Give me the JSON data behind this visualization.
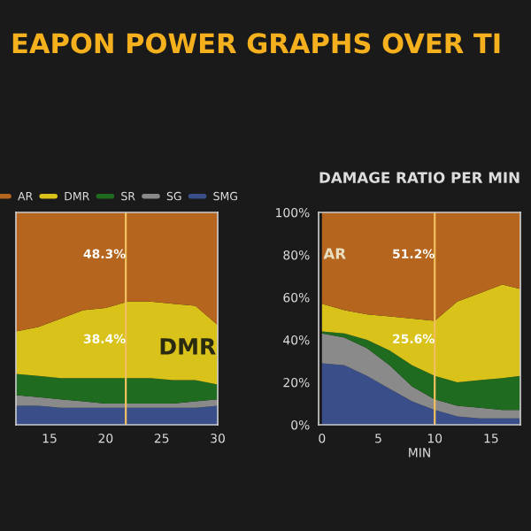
{
  "chart_data": [
    {
      "type": "area",
      "title": "EAPON POWER GRAPHS OVER TI",
      "stacked": true,
      "legend": "top",
      "tick_labels": "x",
      "grid": false,
      "x": [
        12,
        14,
        16,
        18,
        20,
        22,
        24,
        26,
        28,
        30
      ],
      "xlim": [
        12,
        30
      ],
      "xticks": [
        15,
        20,
        25,
        30
      ],
      "ylim": [
        0,
        100
      ],
      "series": [
        {
          "name": "SMG",
          "color": "#3a4f8a",
          "values": [
            9,
            9,
            8,
            8,
            8,
            8,
            8,
            8,
            8,
            9
          ]
        },
        {
          "name": "SG",
          "color": "#8a8a8a",
          "values": [
            5,
            4,
            4,
            3,
            2,
            2,
            2,
            2,
            3,
            3
          ]
        },
        {
          "name": "SR",
          "color": "#1f6b1f",
          "values": [
            10,
            10,
            10,
            11,
            12,
            12,
            12,
            11,
            10,
            7
          ]
        },
        {
          "name": "DMR",
          "color": "#d9c21a",
          "values": [
            20,
            23,
            28,
            32,
            33,
            36,
            36,
            36,
            35,
            28
          ]
        },
        {
          "name": "AR",
          "color": "#b5651d",
          "values": [
            56,
            54,
            50,
            46,
            45,
            42,
            42,
            43,
            44,
            53
          ]
        }
      ],
      "ref_lines": [
        {
          "axis": "x",
          "value": 21.8,
          "color": "#f0c060"
        }
      ],
      "annotations": [
        "48.3%",
        "38.4%",
        "DMR"
      ]
    },
    {
      "type": "area",
      "title": "DAMAGE RATIO PER MIN",
      "stacked": true,
      "xlabel": "MIN",
      "grid": false,
      "x": [
        0,
        2,
        4,
        6,
        8,
        10,
        12,
        14,
        16,
        17.6
      ],
      "xlim": [
        -0.3,
        17.6
      ],
      "xticks": [
        0,
        5,
        10,
        15
      ],
      "ylim": [
        0,
        100
      ],
      "yticks": [
        {
          "value": 0,
          "label": "0%"
        },
        {
          "value": 20,
          "label": "20%"
        },
        {
          "value": 40,
          "label": "40%"
        },
        {
          "value": 60,
          "label": "60%"
        },
        {
          "value": 80,
          "label": "80%"
        },
        {
          "value": 100,
          "label": "100%"
        }
      ],
      "series": [
        {
          "color": "#3a4f8a",
          "values": [
            29,
            28,
            23,
            17,
            11,
            7,
            4,
            3,
            3,
            3
          ]
        },
        {
          "color": "#8a8a8a",
          "values": [
            14,
            13,
            13,
            11,
            7,
            5,
            5,
            5,
            4,
            4
          ]
        },
        {
          "color": "#1f6b1f",
          "values": [
            1,
            2,
            4,
            7,
            10,
            11,
            11,
            13,
            15,
            16
          ]
        },
        {
          "color": "#d9c21a",
          "values": [
            13,
            11,
            12,
            16,
            22,
            26,
            38,
            41,
            44,
            41
          ]
        },
        {
          "color": "#b5651d",
          "values": [
            43,
            46,
            48,
            49,
            50,
            51,
            42,
            38,
            34,
            36
          ]
        }
      ],
      "ref_lines": [
        {
          "axis": "x",
          "value": 10,
          "color": "#f0c060"
        }
      ],
      "annotations": [
        "51.2%",
        "25.6%",
        "AR"
      ]
    }
  ]
}
